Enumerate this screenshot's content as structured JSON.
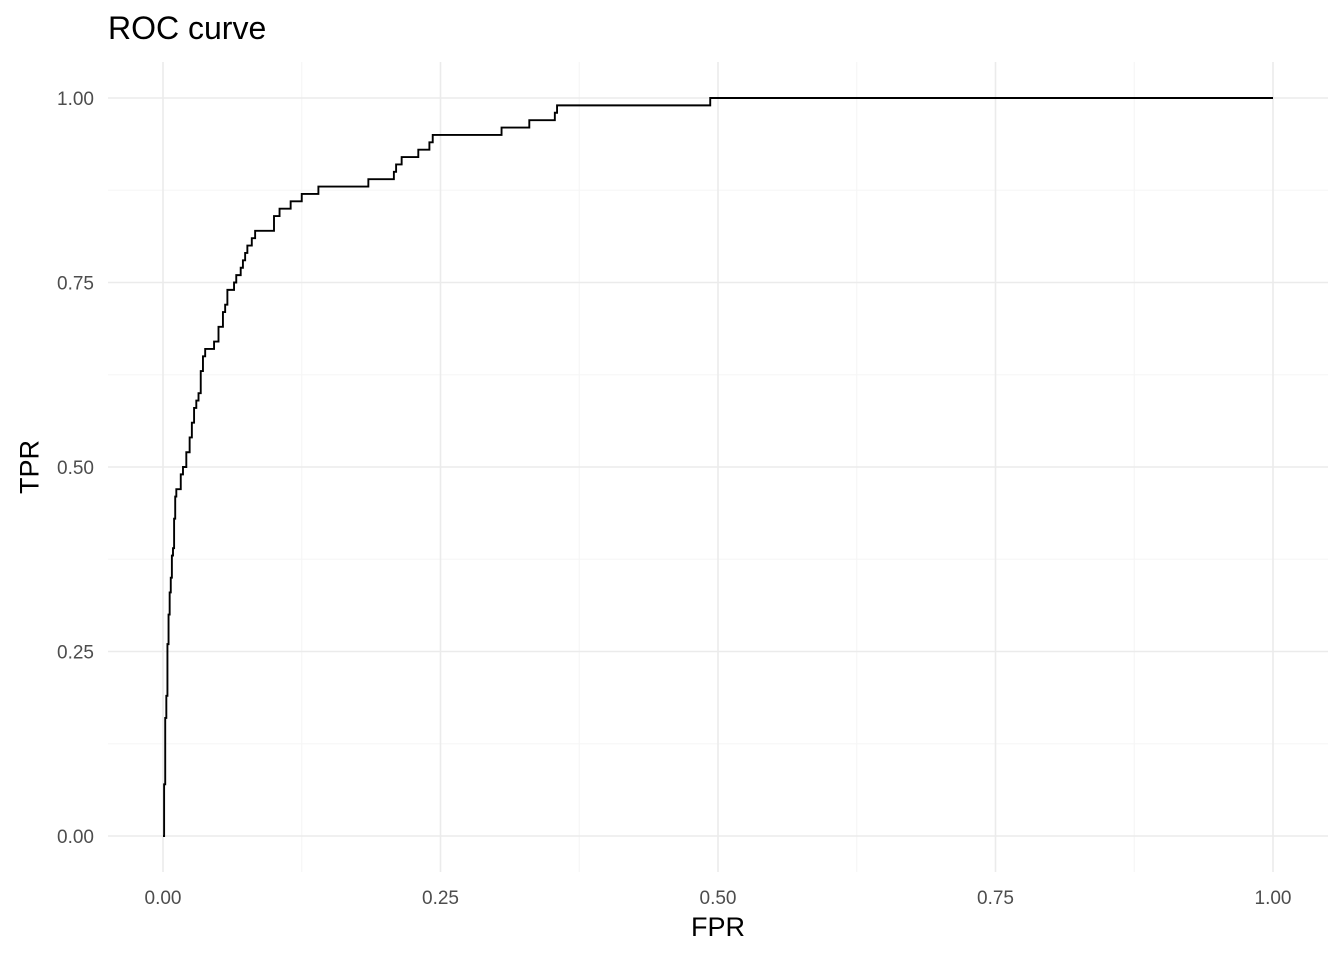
{
  "chart_data": {
    "type": "line",
    "line_style": "step",
    "title": "ROC curve",
    "xlabel": "FPR",
    "ylabel": "TPR",
    "xlim": [
      0,
      1
    ],
    "ylim": [
      0,
      1
    ],
    "x_ticks": [
      {
        "value": 0.0,
        "label": "0.00"
      },
      {
        "value": 0.25,
        "label": "0.25"
      },
      {
        "value": 0.5,
        "label": "0.50"
      },
      {
        "value": 0.75,
        "label": "0.75"
      },
      {
        "value": 1.0,
        "label": "1.00"
      }
    ],
    "y_ticks": [
      {
        "value": 0.0,
        "label": "0.00"
      },
      {
        "value": 0.25,
        "label": "0.25"
      },
      {
        "value": 0.5,
        "label": "0.50"
      },
      {
        "value": 0.75,
        "label": "0.75"
      },
      {
        "value": 1.0,
        "label": "1.00"
      }
    ],
    "grid": true,
    "legend": "none",
    "colors": {
      "line": "#000000",
      "grid_major": "#ebebeb",
      "grid_minor": "#f5f5f5",
      "tick_text": "#4d4d4d",
      "background": "#ffffff"
    },
    "series": [
      {
        "x": [
          0.0,
          0.001,
          0.002,
          0.003,
          0.004,
          0.005,
          0.006,
          0.007,
          0.008,
          0.009,
          0.01,
          0.011,
          0.012,
          0.014,
          0.016,
          0.018,
          0.021,
          0.024,
          0.026,
          0.028,
          0.03,
          0.032,
          0.034,
          0.036,
          0.038,
          0.04,
          0.042,
          0.044,
          0.046,
          0.05,
          0.054,
          0.056,
          0.058,
          0.06,
          0.062,
          0.064,
          0.066,
          0.07,
          0.072,
          0.074,
          0.076,
          0.078,
          0.08,
          0.083,
          0.086,
          0.09,
          0.1,
          0.105,
          0.11,
          0.115,
          0.12,
          0.125,
          0.13,
          0.14,
          0.15,
          0.16,
          0.185,
          0.205,
          0.208,
          0.21,
          0.215,
          0.225,
          0.23,
          0.24,
          0.243,
          0.25,
          0.3,
          0.305,
          0.32,
          0.33,
          0.35,
          0.353,
          0.355,
          0.4,
          0.45,
          0.492,
          0.493,
          0.5,
          0.75,
          1.0
        ],
        "y": [
          0.0,
          0.07,
          0.16,
          0.19,
          0.26,
          0.3,
          0.33,
          0.35,
          0.38,
          0.39,
          0.43,
          0.46,
          0.47,
          0.47,
          0.49,
          0.5,
          0.52,
          0.54,
          0.56,
          0.58,
          0.59,
          0.6,
          0.63,
          0.65,
          0.66,
          0.66,
          0.66,
          0.66,
          0.67,
          0.69,
          0.71,
          0.72,
          0.74,
          0.74,
          0.74,
          0.75,
          0.76,
          0.77,
          0.78,
          0.79,
          0.8,
          0.8,
          0.81,
          0.82,
          0.82,
          0.82,
          0.84,
          0.85,
          0.85,
          0.86,
          0.86,
          0.87,
          0.87,
          0.88,
          0.88,
          0.88,
          0.89,
          0.89,
          0.9,
          0.91,
          0.92,
          0.92,
          0.93,
          0.94,
          0.95,
          0.95,
          0.95,
          0.96,
          0.96,
          0.97,
          0.97,
          0.98,
          0.99,
          0.99,
          0.99,
          0.99,
          1.0,
          1.0,
          1.0,
          1.0
        ]
      }
    ]
  }
}
